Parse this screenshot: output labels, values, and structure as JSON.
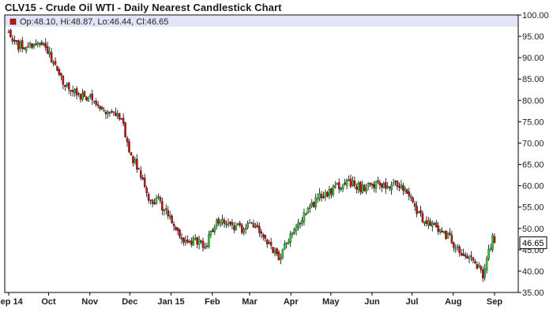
{
  "chart_data": {
    "type": "candlestick",
    "title": "CLV15 - Crude Oil WTI - Daily Nearest Candlestick Chart",
    "legend": {
      "text": "Op:48.10, Hi:48.87, Lo:46.44, Cl:46.65",
      "open": 48.1,
      "high": 48.87,
      "low": 46.44,
      "close": 46.65
    },
    "last_price_label": "46.65",
    "last_price": 46.65,
    "ylim": [
      35,
      100
    ],
    "y_ticks": [
      "35.00",
      "40.00",
      "45.00",
      "50.00",
      "55.00",
      "60.00",
      "65.00",
      "70.00",
      "75.00",
      "80.00",
      "85.00",
      "90.00",
      "95.00",
      "100.00"
    ],
    "x_ticks": [
      {
        "label": "Sep 14",
        "date": "2014-09-01"
      },
      {
        "label": "Oct",
        "date": "2014-10-01"
      },
      {
        "label": "Nov",
        "date": "2014-11-01"
      },
      {
        "label": "Dec",
        "date": "2014-12-01"
      },
      {
        "label": "Jan 15",
        "date": "2015-01-01"
      },
      {
        "label": "Feb",
        "date": "2015-02-01"
      },
      {
        "label": "Mar",
        "date": "2015-03-01"
      },
      {
        "label": "Apr",
        "date": "2015-04-01"
      },
      {
        "label": "May",
        "date": "2015-05-01"
      },
      {
        "label": "Jun",
        "date": "2015-06-01"
      },
      {
        "label": "Jul",
        "date": "2015-07-01"
      },
      {
        "label": "Aug",
        "date": "2015-08-01"
      },
      {
        "label": "Sep",
        "date": "2015-09-01"
      }
    ],
    "close_path": [
      [
        "2014-09-01",
        95.5
      ],
      [
        "2014-09-08",
        93.0
      ],
      [
        "2014-09-15",
        92.5
      ],
      [
        "2014-09-22",
        93.5
      ],
      [
        "2014-09-29",
        92.0
      ],
      [
        "2014-10-06",
        88.0
      ],
      [
        "2014-10-13",
        83.0
      ],
      [
        "2014-10-20",
        82.0
      ],
      [
        "2014-10-27",
        81.0
      ],
      [
        "2014-11-03",
        80.0
      ],
      [
        "2014-11-10",
        78.5
      ],
      [
        "2014-11-17",
        77.0
      ],
      [
        "2014-11-24",
        76.5
      ],
      [
        "2014-12-01",
        68.0
      ],
      [
        "2014-12-08",
        63.0
      ],
      [
        "2014-12-15",
        57.0
      ],
      [
        "2014-12-22",
        56.5
      ],
      [
        "2014-12-29",
        54.0
      ],
      [
        "2015-01-05",
        49.0
      ],
      [
        "2015-01-12",
        47.0
      ],
      [
        "2015-01-19",
        47.5
      ],
      [
        "2015-01-26",
        45.5
      ],
      [
        "2015-02-02",
        50.5
      ],
      [
        "2015-02-09",
        52.0
      ],
      [
        "2015-02-16",
        51.0
      ],
      [
        "2015-02-23",
        49.5
      ],
      [
        "2015-03-02",
        50.5
      ],
      [
        "2015-03-09",
        49.0
      ],
      [
        "2015-03-16",
        45.5
      ],
      [
        "2015-03-23",
        43.0
      ],
      [
        "2015-03-30",
        47.5
      ],
      [
        "2015-04-06",
        50.5
      ],
      [
        "2015-04-13",
        53.5
      ],
      [
        "2015-04-20",
        57.0
      ],
      [
        "2015-04-27",
        57.5
      ],
      [
        "2015-05-04",
        59.5
      ],
      [
        "2015-05-11",
        60.5
      ],
      [
        "2015-05-18",
        60.0
      ],
      [
        "2015-05-25",
        59.5
      ],
      [
        "2015-06-01",
        60.5
      ],
      [
        "2015-06-08",
        59.5
      ],
      [
        "2015-06-15",
        60.5
      ],
      [
        "2015-06-22",
        60.0
      ],
      [
        "2015-06-29",
        58.5
      ],
      [
        "2015-07-06",
        53.0
      ],
      [
        "2015-07-13",
        52.0
      ],
      [
        "2015-07-20",
        50.5
      ],
      [
        "2015-07-27",
        48.5
      ],
      [
        "2015-08-03",
        46.0
      ],
      [
        "2015-08-10",
        44.0
      ],
      [
        "2015-08-17",
        42.0
      ],
      [
        "2015-08-24",
        39.0
      ],
      [
        "2015-08-28",
        45.0
      ],
      [
        "2015-08-31",
        48.0
      ],
      [
        "2015-09-01",
        46.65
      ]
    ],
    "colors": {
      "up": "#33cc33",
      "down": "#cc1111",
      "wick": "#000000",
      "legend_bg": "#e4e4f7",
      "legend_marker": "#cc1111"
    }
  }
}
